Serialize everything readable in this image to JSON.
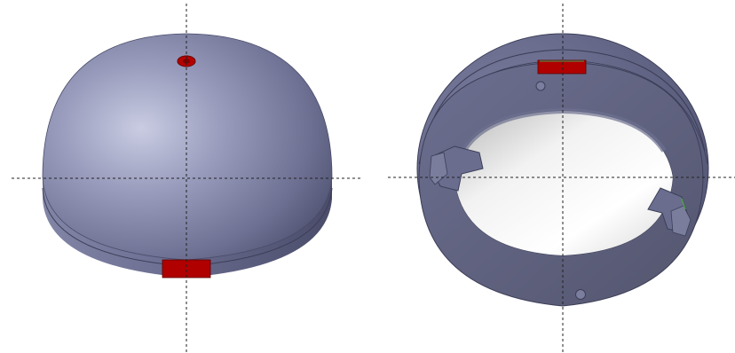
{
  "views": [
    {
      "name": "dome-exterior-view"
    },
    {
      "name": "dome-interior-view"
    }
  ],
  "colors": {
    "body": "#6f7296",
    "body_light": "#c3c6dc",
    "body_dark": "#3e4060",
    "ring": "#5d6080",
    "ring_dark": "#44465f",
    "cavity_light": "#fbfbfb",
    "cavity_dark": "#9b9b9b",
    "marker": "#b00000",
    "axis": "#222222"
  }
}
